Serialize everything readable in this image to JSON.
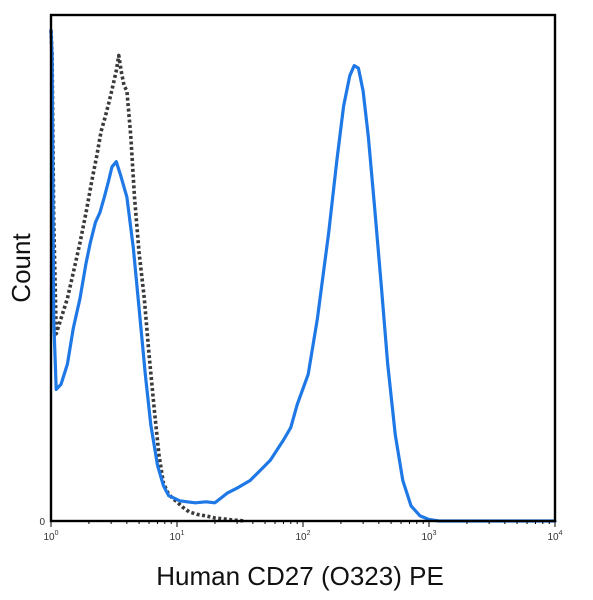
{
  "chart_data": {
    "type": "line",
    "title": "",
    "xlabel": "Human CD27 (O323) PE",
    "ylabel": "Count",
    "x_scale": "log",
    "xlim": [
      1,
      10000
    ],
    "ylim": [
      0,
      100
    ],
    "y_tick_labels": [
      {
        "value": 0,
        "label": "0"
      }
    ],
    "x_tick_labels": [
      {
        "value": 1,
        "base": "10",
        "exp": "0"
      },
      {
        "value": 10,
        "base": "10",
        "exp": "1"
      },
      {
        "value": 100,
        "base": "10",
        "exp": "2"
      },
      {
        "value": 1000,
        "base": "10",
        "exp": "3"
      },
      {
        "value": 10000,
        "base": "10",
        "exp": "4"
      }
    ],
    "grid": false,
    "legend": "none",
    "series": [
      {
        "style": "dotted",
        "color": "#3a3a3a",
        "x": [
          1.0,
          1.02,
          1.05,
          1.1,
          1.2,
          1.35,
          1.5,
          1.7,
          1.9,
          2.1,
          2.3,
          2.5,
          2.7,
          2.9,
          3.1,
          3.3,
          3.45,
          3.6,
          3.8,
          4.0,
          4.3,
          4.6,
          5.0,
          5.5,
          6.0,
          6.6,
          7.2,
          7.8,
          8.5,
          9.2,
          10,
          11,
          12.5,
          14.5,
          17,
          20,
          24,
          28,
          35
        ],
        "y": [
          97,
          92,
          60,
          37,
          40,
          44,
          49,
          55,
          61,
          67,
          72,
          77,
          80,
          83,
          86,
          89,
          92,
          89,
          86,
          85,
          76,
          64,
          53,
          44,
          33,
          22,
          13,
          7.5,
          5.5,
          4.5,
          3.8,
          2.8,
          1.8,
          1.3,
          1.0,
          0.6,
          0.4,
          0.2,
          0
        ]
      },
      {
        "style": "solid",
        "color": "#1e78e6",
        "x": [
          1.0,
          1.02,
          1.05,
          1.1,
          1.2,
          1.35,
          1.5,
          1.7,
          1.9,
          2.05,
          2.25,
          2.45,
          2.65,
          2.85,
          3.05,
          3.3,
          3.6,
          4.0,
          4.5,
          5.0,
          5.6,
          6.2,
          7.0,
          7.8,
          8.6,
          9.5,
          10.5,
          12,
          14,
          17,
          20,
          22,
          25,
          30,
          38,
          48,
          55,
          62,
          70,
          80,
          90,
          110,
          130,
          160,
          185,
          210,
          235,
          255,
          275,
          300,
          330,
          370,
          420,
          470,
          540,
          620,
          720,
          850,
          1000,
          1200,
          1600,
          2500,
          5000,
          10000
        ],
        "y": [
          97,
          92,
          40,
          26,
          27,
          31,
          38,
          44,
          51,
          55,
          59,
          61,
          64,
          67,
          70,
          71,
          68,
          64,
          54,
          42,
          29,
          19,
          11,
          7,
          5,
          4.5,
          4.0,
          3.8,
          3.6,
          3.8,
          3.6,
          4.4,
          5.5,
          6.5,
          8.0,
          10.5,
          12.0,
          14.0,
          16.0,
          18.5,
          23.0,
          29.0,
          40.0,
          57.0,
          71.0,
          82.0,
          88.0,
          90.0,
          89.5,
          85.0,
          76.0,
          62.0,
          46.0,
          31.0,
          17.0,
          8.0,
          3.0,
          1.0,
          0.3,
          0,
          0,
          0,
          0,
          0
        ]
      }
    ]
  }
}
